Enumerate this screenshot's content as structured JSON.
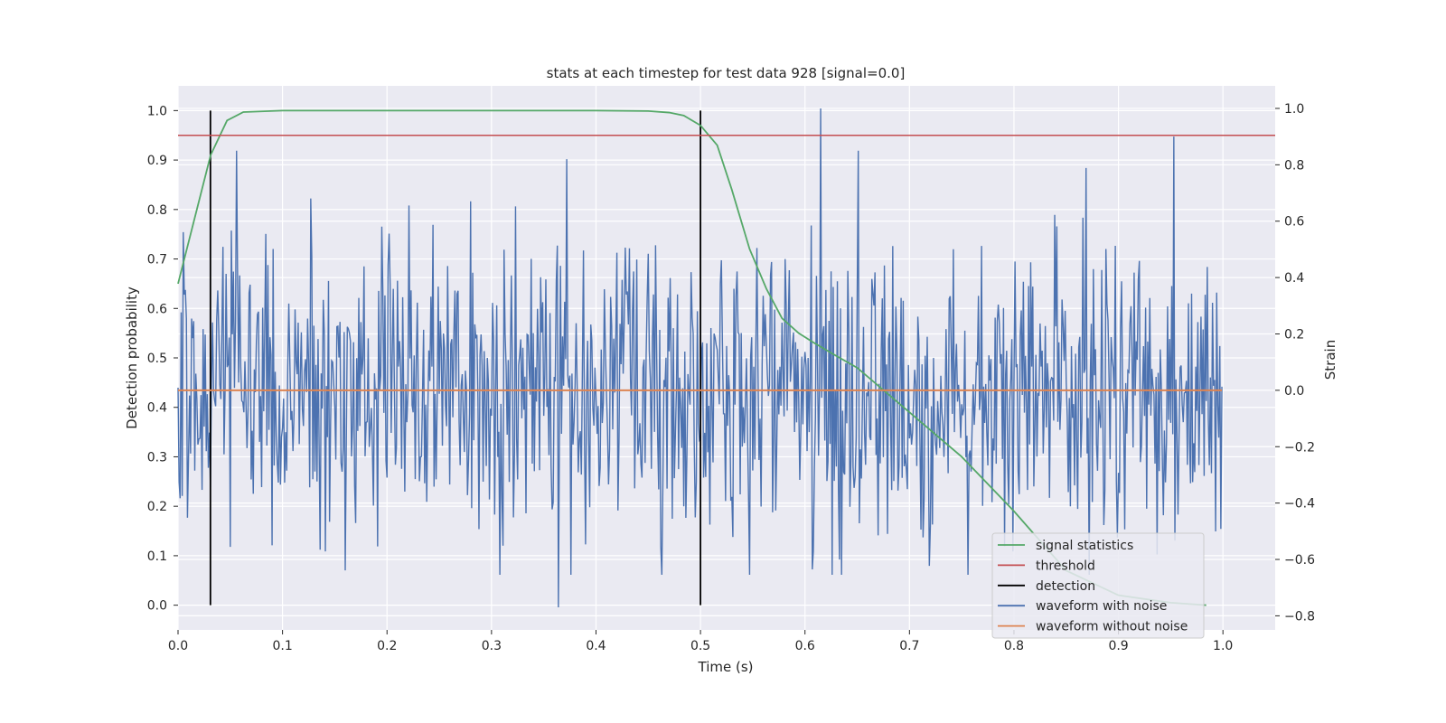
{
  "chart_data": {
    "type": "line",
    "title": "stats at each timestep for test data 928 [signal=0.0]",
    "xlabel": "Time (s)",
    "ylabel": "Detection probability",
    "y2label": "Strain",
    "xlim": [
      0.0,
      1.05
    ],
    "ylim": [
      -0.05,
      1.05
    ],
    "y2lim": [
      -0.85,
      1.08
    ],
    "xticks": [
      "0.0",
      "0.1",
      "0.2",
      "0.3",
      "0.4",
      "0.5",
      "0.6",
      "0.7",
      "0.8",
      "0.9",
      "1.0"
    ],
    "yticks": [
      "0.0",
      "0.1",
      "0.2",
      "0.3",
      "0.4",
      "0.5",
      "0.6",
      "0.7",
      "0.8",
      "0.9",
      "1.0"
    ],
    "y2ticks": [
      "−0.8",
      "−0.6",
      "−0.4",
      "−0.2",
      "0.0",
      "0.2",
      "0.4",
      "0.6",
      "0.8",
      "1.0"
    ],
    "grid": true,
    "legend_position": "lower-right",
    "series": [
      {
        "name": "signal statistics",
        "color": "#55a868",
        "axis": "left",
        "x": [
          0.0,
          0.0156,
          0.0312,
          0.0469,
          0.0625,
          0.1,
          0.2,
          0.3,
          0.4,
          0.45,
          0.47,
          0.484,
          0.5,
          0.516,
          0.53,
          0.547,
          0.563,
          0.578,
          0.594,
          0.609,
          0.625,
          0.65,
          0.7,
          0.75,
          0.8,
          0.85,
          0.9,
          0.95,
          0.984
        ],
        "y": [
          0.65,
          0.78,
          0.91,
          0.98,
          0.997,
          1.0,
          1.0,
          1.0,
          1.0,
          0.999,
          0.996,
          0.99,
          0.97,
          0.93,
          0.84,
          0.72,
          0.64,
          0.58,
          0.55,
          0.53,
          0.51,
          0.48,
          0.39,
          0.3,
          0.19,
          0.07,
          0.02,
          0.005,
          0.0
        ]
      },
      {
        "name": "threshold",
        "color": "#c44e52",
        "axis": "left",
        "x": [
          0.0,
          1.05
        ],
        "y": [
          0.95,
          0.95
        ]
      },
      {
        "name": "detection",
        "color": "#000000",
        "axis": "left",
        "vlines": [
          0.031,
          0.5
        ],
        "y": [
          0.0,
          1.0
        ]
      },
      {
        "name": "waveform with noise",
        "color": "#4c72b0",
        "axis": "right",
        "n_points": 1000,
        "x_range": [
          0.0,
          0.999
        ],
        "y_range": [
          -0.77,
          1.0
        ],
        "marked_extremes": [
          [
            0.364,
            -0.77
          ],
          [
            0.615,
            1.0
          ],
          [
            0.953,
            0.9
          ],
          [
            0.372,
            0.82
          ]
        ]
      },
      {
        "name": "waveform without noise",
        "color": "#dd8452",
        "axis": "right",
        "x": [
          0.0,
          0.999
        ],
        "y": [
          0.0,
          0.0
        ]
      }
    ]
  }
}
